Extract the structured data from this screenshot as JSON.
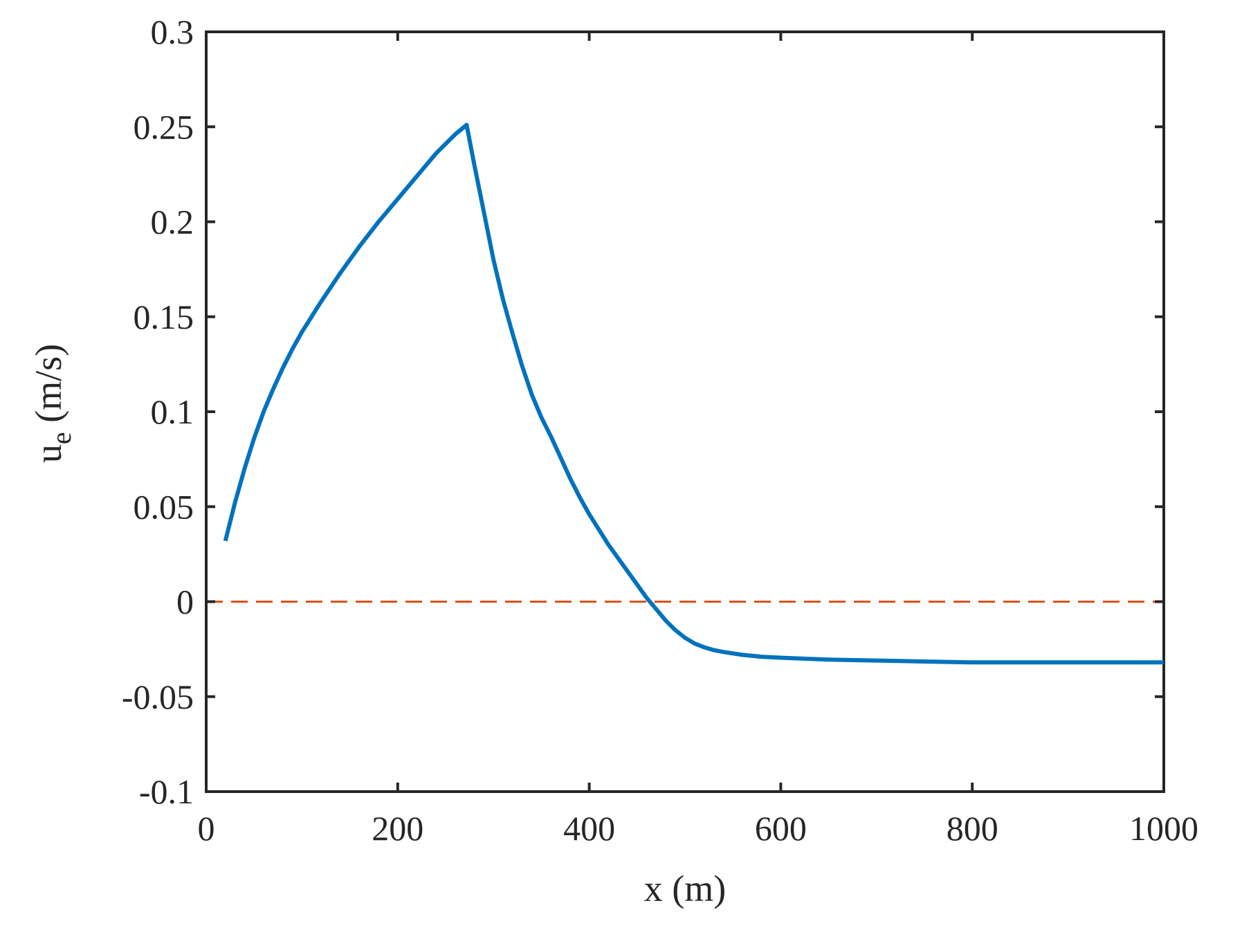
{
  "chart_data": {
    "type": "line",
    "title": "",
    "xlabel": "x (m)",
    "ylabel": "u",
    "ylabel_subscript": "e",
    "ylabel_suffix": " (m/s)",
    "xlim": [
      0,
      1000
    ],
    "ylim": [
      -0.1,
      0.3
    ],
    "x_ticks": [
      0,
      200,
      400,
      600,
      800,
      1000
    ],
    "x_tick_labels": [
      "0",
      "200",
      "400",
      "600",
      "800",
      "1000"
    ],
    "y_ticks": [
      -0.1,
      -0.05,
      0,
      0.05,
      0.1,
      0.15,
      0.2,
      0.25,
      0.3
    ],
    "y_tick_labels": [
      "-0.1",
      "-0.05",
      "0",
      "0.05",
      "0.1",
      "0.15",
      "0.2",
      "0.25",
      "0.3"
    ],
    "grid": false,
    "series": [
      {
        "color": "#0072BD",
        "style": "solid",
        "x": [
          20,
          30,
          40,
          50,
          60,
          70,
          80,
          90,
          100,
          120,
          140,
          160,
          180,
          200,
          220,
          240,
          260,
          272,
          280,
          290,
          300,
          310,
          320,
          330,
          340,
          350,
          360,
          370,
          380,
          390,
          400,
          420,
          440,
          460,
          470,
          480,
          490,
          500,
          510,
          520,
          530,
          540,
          560,
          580,
          600,
          650,
          700,
          750,
          800,
          850,
          900,
          950,
          1000
        ],
        "y": [
          0.032,
          0.052,
          0.07,
          0.086,
          0.1,
          0.112,
          0.123,
          0.133,
          0.142,
          0.158,
          0.173,
          0.187,
          0.2,
          0.212,
          0.224,
          0.236,
          0.246,
          0.251,
          0.23,
          0.205,
          0.18,
          0.159,
          0.141,
          0.124,
          0.109,
          0.097,
          0.087,
          0.076,
          0.065,
          0.055,
          0.046,
          0.03,
          0.016,
          0.002,
          -0.004,
          -0.01,
          -0.015,
          -0.019,
          -0.022,
          -0.024,
          -0.0255,
          -0.0265,
          -0.028,
          -0.029,
          -0.0295,
          -0.0305,
          -0.031,
          -0.0315,
          -0.032,
          -0.032,
          -0.032,
          -0.032,
          -0.032
        ]
      },
      {
        "color": "#D95319",
        "style": "dashed",
        "x": [
          0,
          1000
        ],
        "y": [
          0,
          0
        ]
      }
    ]
  }
}
